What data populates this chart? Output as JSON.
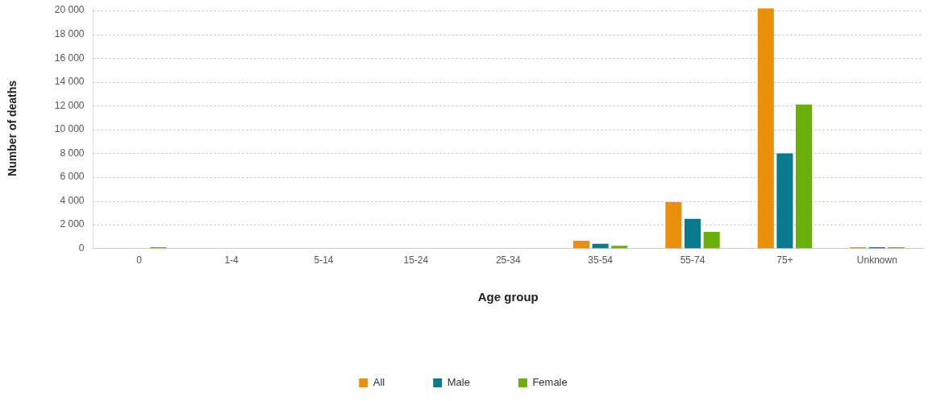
{
  "chart_data": {
    "type": "bar",
    "xlabel": "Age group",
    "ylabel": "Number of deaths",
    "categories": [
      "0",
      "1-4",
      "5-14",
      "15-24",
      "25-34",
      "35-54",
      "55-74",
      "75+",
      "Unknown"
    ],
    "series": [
      {
        "name": "All",
        "color": "#e8900a",
        "values": [
          0,
          0,
          0,
          0,
          null,
          650,
          3900,
          20200,
          100
        ]
      },
      {
        "name": "Male",
        "color": "#0a7a8e",
        "values": [
          0,
          0,
          0,
          0,
          null,
          400,
          2500,
          8000,
          100
        ]
      },
      {
        "name": "Female",
        "color": "#6aaf0a",
        "values": [
          100,
          0,
          0,
          0,
          0,
          230,
          1400,
          12100,
          100
        ]
      }
    ],
    "ylim": [
      0,
      20200
    ],
    "yticks": [
      0,
      2000,
      4000,
      6000,
      8000,
      10000,
      12000,
      14000,
      16000,
      18000,
      20000
    ],
    "grid": "y",
    "legend": "bottom"
  }
}
